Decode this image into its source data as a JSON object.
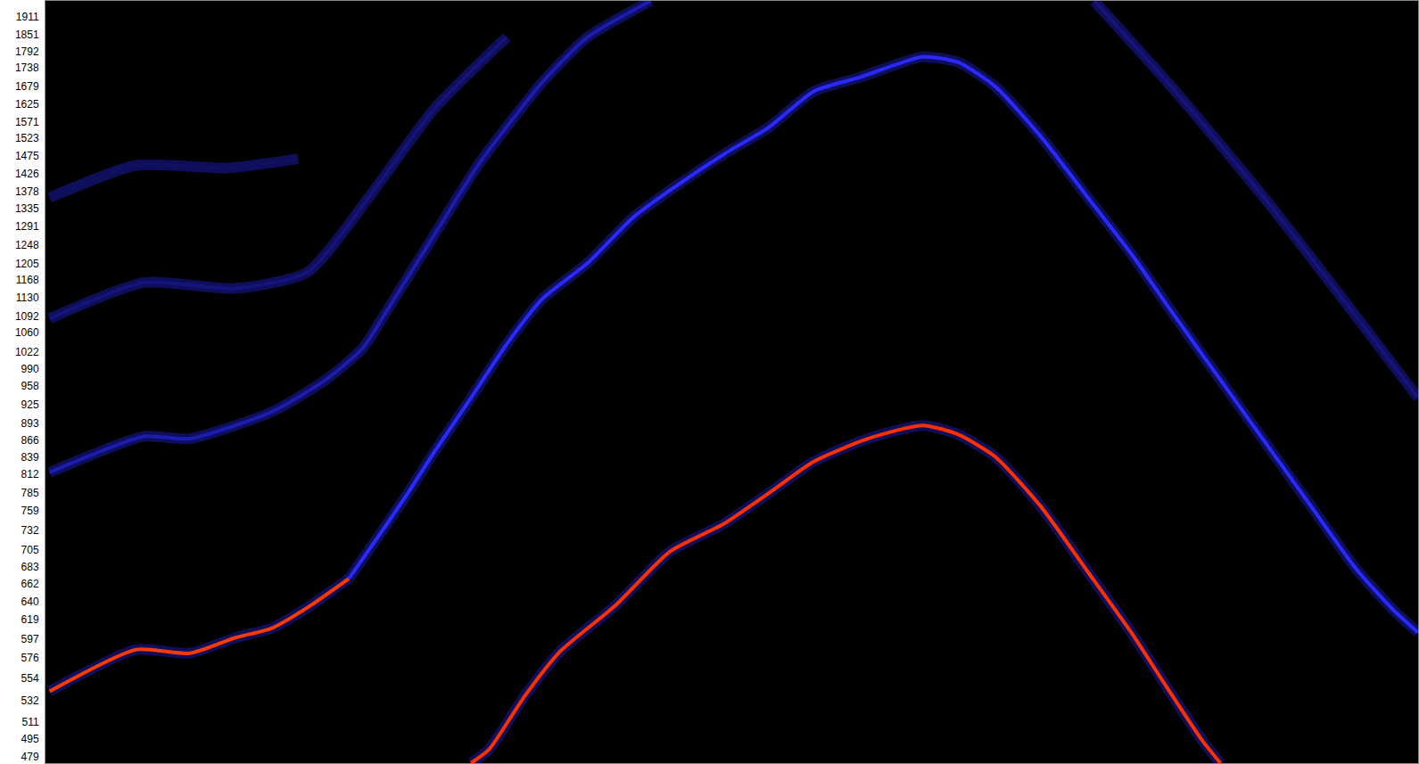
{
  "chart_data": {
    "type": "line",
    "log": "y",
    "grid": false,
    "tick_labels": "y",
    "xlim": [
      0,
      100
    ],
    "ylim": [
      473,
      1970
    ],
    "yticks": [
      479,
      495,
      511,
      532,
      554,
      576,
      597,
      619,
      640,
      662,
      683,
      705,
      732,
      759,
      785,
      812,
      839,
      866,
      893,
      925,
      958,
      990,
      1022,
      1060,
      1092,
      1130,
      1168,
      1205,
      1248,
      1291,
      1335,
      1378,
      1426,
      1475,
      1523,
      1571,
      1625,
      1679,
      1738,
      1792,
      1851,
      1911
    ],
    "series": [
      {
        "color": "#ff3a00",
        "x": [
          0.3,
          6.6,
          10.5,
          13.8,
          16.5,
          19.1,
          22.1
        ],
        "values": [
          541,
          585,
          581,
          598,
          609,
          633,
          668
        ]
      },
      {
        "color": "#2a2aff",
        "x": [
          22.1,
          24.4,
          26.4,
          28.3,
          31.0,
          33.6,
          36.2,
          39.5,
          42.8,
          45.5,
          49.4,
          52.7,
          56.0,
          59.3,
          63.9,
          66.5,
          69.2,
          72.5,
          75.8,
          79.1,
          82.3,
          85.6,
          88.9,
          92.2,
          95.5,
          98.2,
          100
        ],
        "values": [
          668,
          727,
          784,
          846,
          937,
          1036,
          1128,
          1206,
          1313,
          1382,
          1478,
          1555,
          1664,
          1707,
          1774,
          1756,
          1678,
          1529,
          1370,
          1227,
          1091,
          969,
          861,
          765,
          680,
          630,
          604
        ]
      },
      {
        "color": "#ff3000",
        "x": [
          31.0,
          32.3,
          34.9,
          37.5,
          41.5,
          45.5,
          49.4,
          52.7,
          56.0,
          59.9,
          63.9,
          66.5,
          69.2,
          72.5,
          75.8,
          79.1,
          81.7,
          84.3,
          85.6
        ],
        "values": [
          473,
          485,
          536,
          583,
          635,
          703,
          740,
          784,
          832,
          868,
          890,
          875,
          839,
          765,
          680,
          604,
          545,
          493,
          473
        ]
      },
      {
        "color": "#1c1cb0",
        "x": [
          0.3,
          7.2,
          10.5,
          16.5,
          20.4,
          23.1,
          25.0,
          28.3,
          31.6,
          36.2,
          39.5,
          44.1
        ],
        "values": [
          815,
          872,
          868,
          913,
          969,
          1028,
          1109,
          1270,
          1453,
          1692,
          1841,
          1970
        ]
      },
      {
        "color": "#14147a",
        "x": [
          0.3,
          7.2,
          13.8,
          19.1,
          24.4,
          28.3,
          33.6
        ],
        "values": [
          1087,
          1163,
          1150,
          1186,
          1405,
          1609,
          1841
        ]
      },
      {
        "color": "#101060",
        "x": [
          0.3,
          6.6,
          13.2,
          18.4
        ],
        "values": [
          1363,
          1448,
          1441,
          1466
        ]
      },
      {
        "color": "#14147a",
        "x": [
          76.4,
          82.3,
          88.9,
          95.5,
          100
        ],
        "values": [
          1970,
          1664,
          1358,
          1091,
          937
        ]
      }
    ]
  }
}
